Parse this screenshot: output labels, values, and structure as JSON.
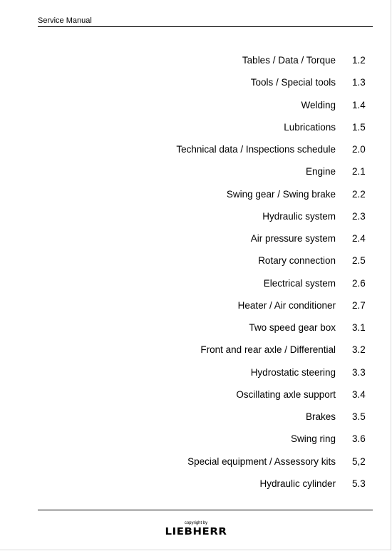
{
  "header": {
    "title": "Service Manual"
  },
  "toc": [
    {
      "label": "Tables / Data / Torque",
      "section": "1.2"
    },
    {
      "label": "Tools / Special tools",
      "section": "1.3"
    },
    {
      "label": "Welding",
      "section": "1.4"
    },
    {
      "label": "Lubrications",
      "section": "1.5"
    },
    {
      "label": "Technical data / Inspections schedule",
      "section": "2.0"
    },
    {
      "label": "Engine",
      "section": "2.1"
    },
    {
      "label": "Swing gear / Swing brake",
      "section": "2.2"
    },
    {
      "label": "Hydraulic system",
      "section": "2.3"
    },
    {
      "label": "Air pressure system",
      "section": "2.4"
    },
    {
      "label": "Rotary connection",
      "section": "2.5"
    },
    {
      "label": "Electrical system",
      "section": "2.6"
    },
    {
      "label": "Heater / Air conditioner",
      "section": "2.7"
    },
    {
      "label": "Two speed gear box",
      "section": "3.1"
    },
    {
      "label": "Front and rear axle / Differential",
      "section": "3.2"
    },
    {
      "label": "Hydrostatic steering",
      "section": "3.3"
    },
    {
      "label": "Oscillating axle support",
      "section": "3.4"
    },
    {
      "label": "Brakes",
      "section": "3.5"
    },
    {
      "label": "Swing ring",
      "section": "3.6"
    },
    {
      "label": "Special equipment / Assessory kits",
      "section": "5,2"
    },
    {
      "label": "Hydraulic cylinder",
      "section": "5.3"
    }
  ],
  "footer": {
    "copyright": "copyright by",
    "logo_text": "LIEBHERR"
  }
}
